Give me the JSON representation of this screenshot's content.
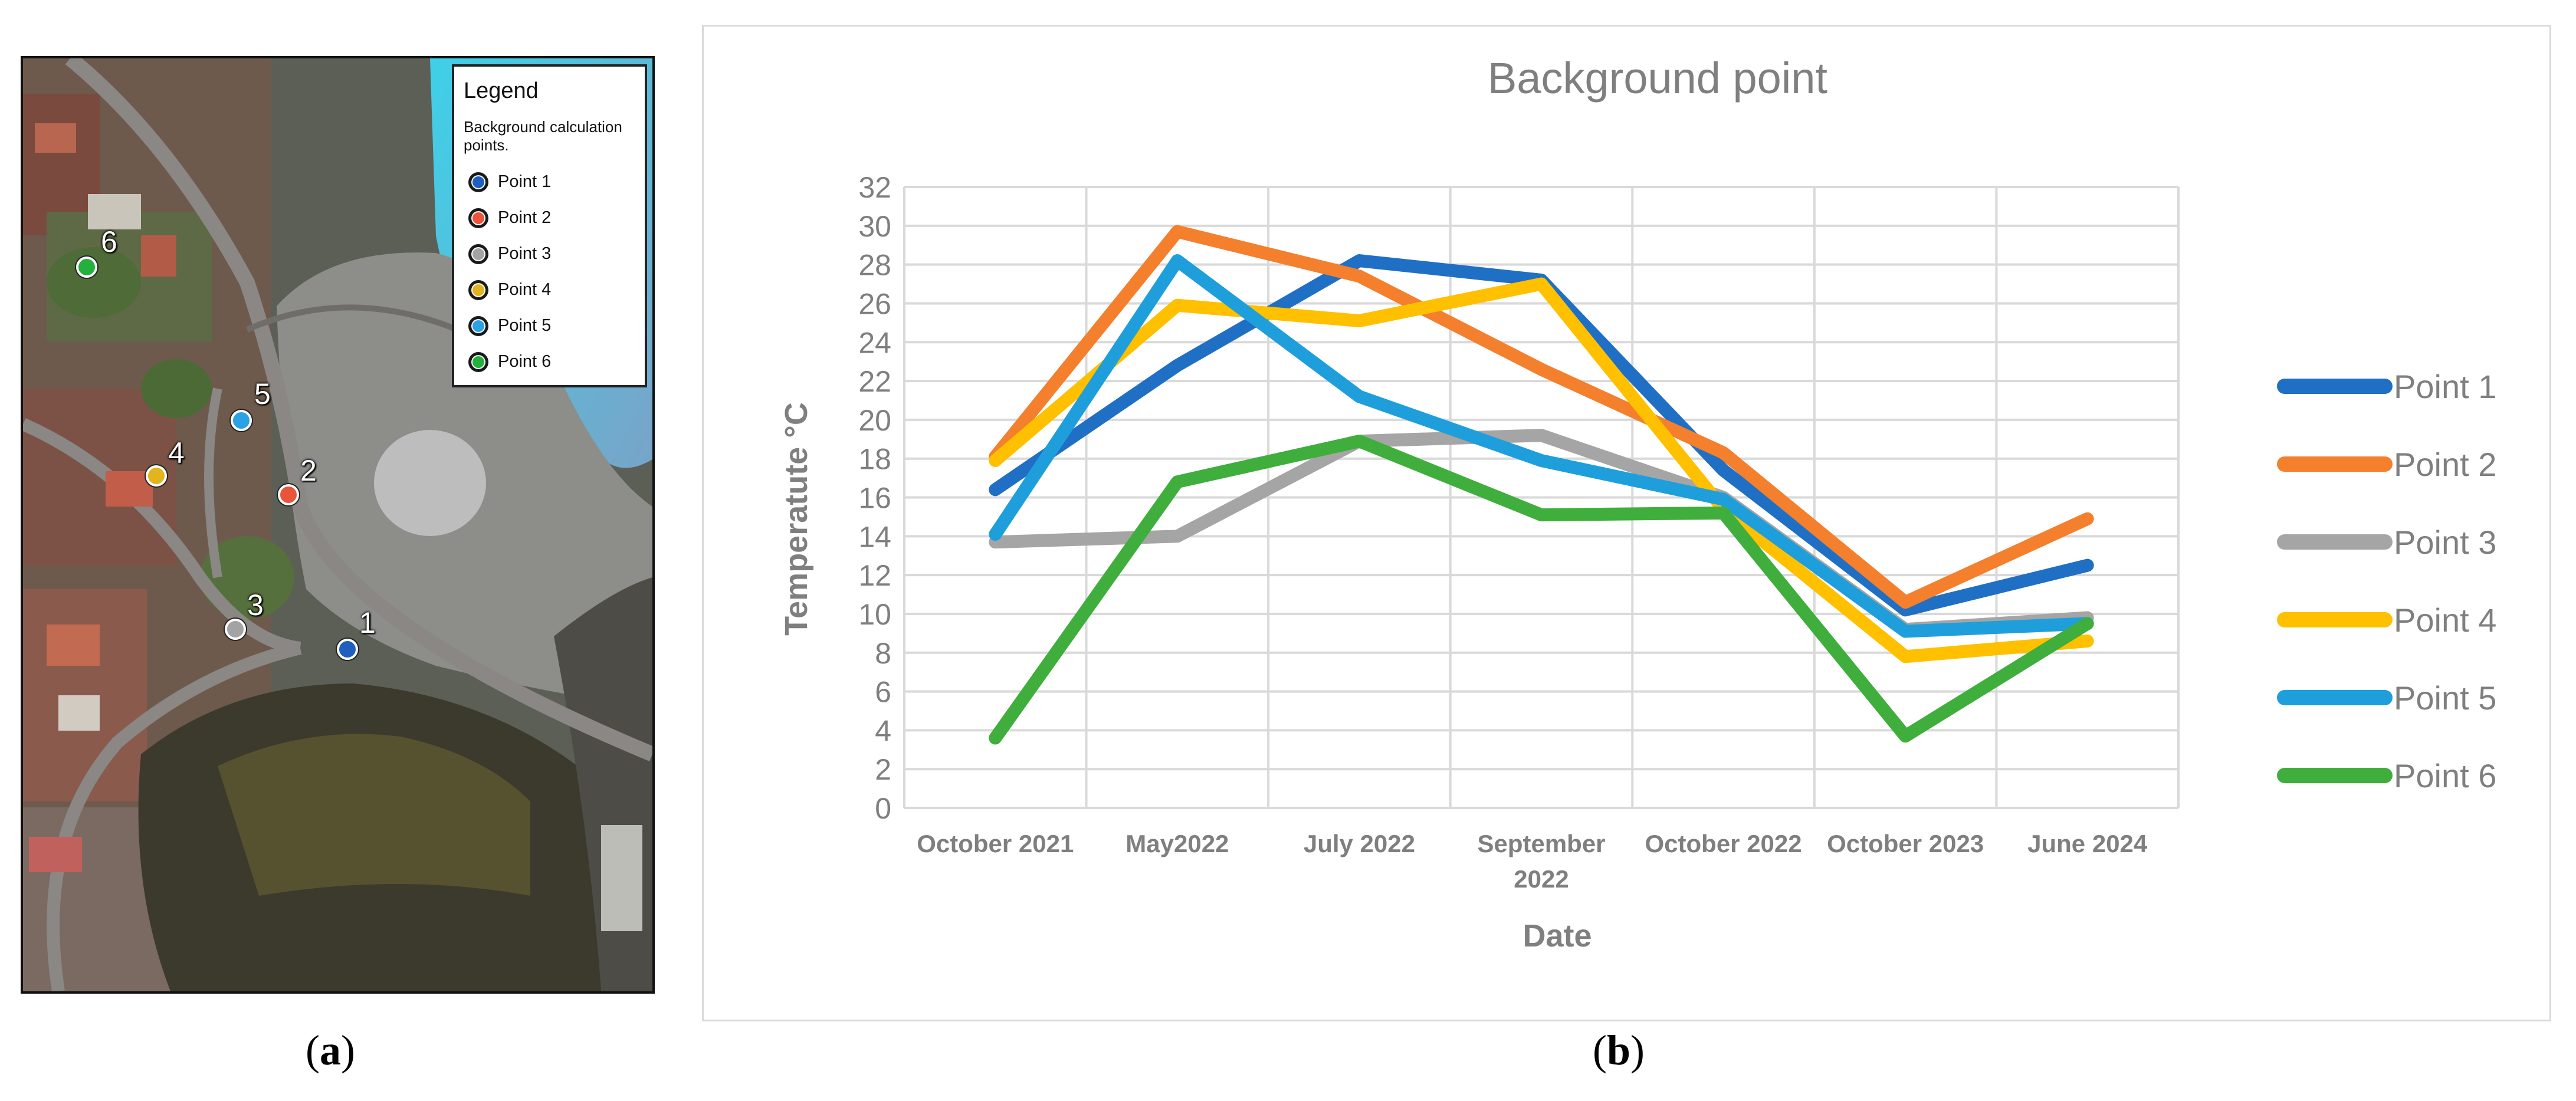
{
  "panel_captions": {
    "a": {
      "open": "(",
      "letter": "a",
      "close": ")"
    },
    "b": {
      "open": "(",
      "letter": "b",
      "close": ")"
    }
  },
  "map": {
    "legend_title": "Legend",
    "legend_subtitle": "Background calculation points.",
    "items": [
      {
        "label": "Point 1",
        "number": "1",
        "color": "#1f5fbf"
      },
      {
        "label": "Point 2",
        "number": "2",
        "color": "#e8553a"
      },
      {
        "label": "Point 3",
        "number": "3",
        "color": "#a3a3a3"
      },
      {
        "label": "Point 4",
        "number": "4",
        "color": "#e3b51c"
      },
      {
        "label": "Point 5",
        "number": "5",
        "color": "#2aa2e3"
      },
      {
        "label": "Point 6",
        "number": "6",
        "color": "#23b03c"
      }
    ]
  },
  "chart_data": {
    "type": "line",
    "title": "Background point",
    "xlabel": "Date",
    "ylabel": "Temperatute  °C",
    "ylim": [
      0,
      32
    ],
    "yticks": [
      0,
      2,
      4,
      6,
      8,
      10,
      12,
      14,
      16,
      18,
      20,
      22,
      24,
      26,
      28,
      30,
      32
    ],
    "grid": true,
    "legend_position": "right",
    "categories": [
      [
        "October 2021"
      ],
      [
        "May2022"
      ],
      [
        "July 2022"
      ],
      [
        "September",
        "2022"
      ],
      [
        "October 2022"
      ],
      [
        "October 2023"
      ],
      [
        "June 2024"
      ]
    ],
    "series": [
      {
        "name": "Point 1",
        "color": "#1f6fc5",
        "values": [
          16.4,
          22.8,
          28.2,
          27.2,
          17.4,
          10.2,
          12.5
        ]
      },
      {
        "name": "Point 2",
        "color": "#f47f2d",
        "values": [
          18.1,
          29.7,
          27.4,
          22.6,
          18.3,
          10.6,
          14.9
        ]
      },
      {
        "name": "Point 3",
        "color": "#a5a5a5",
        "values": [
          13.7,
          14.0,
          18.9,
          19.2,
          16.0,
          9.2,
          9.8
        ]
      },
      {
        "name": "Point 4",
        "color": "#ffc000",
        "values": [
          17.9,
          25.9,
          25.1,
          27.0,
          15.4,
          7.8,
          8.6
        ]
      },
      {
        "name": "Point 5",
        "color": "#1e9fdc",
        "values": [
          14.1,
          28.2,
          21.2,
          17.9,
          15.9,
          9.1,
          9.5
        ]
      },
      {
        "name": "Point 6",
        "color": "#3fae3c",
        "values": [
          3.6,
          16.8,
          18.9,
          15.1,
          15.2,
          3.7,
          9.5
        ]
      }
    ]
  }
}
